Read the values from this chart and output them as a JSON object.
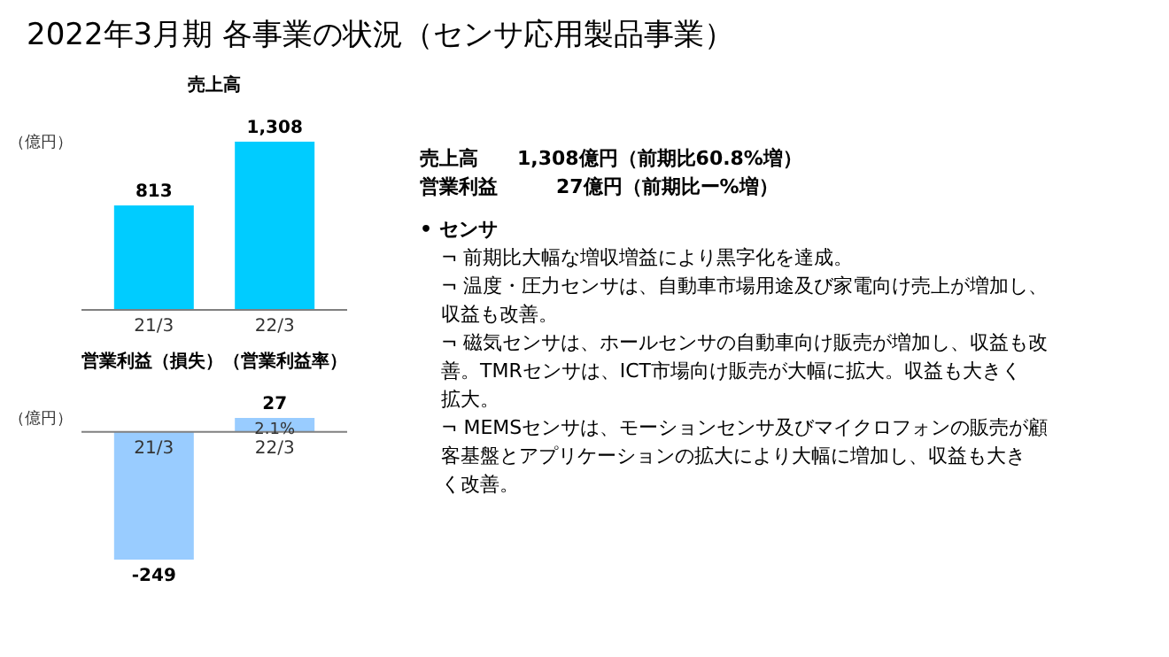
{
  "chart_data": [
    {
      "type": "other",
      "title": "2022年3月期 各事業の状況（センサ応用製品事業）"
    },
    {
      "type": "bar",
      "title": "売上高",
      "ylabel": "（億円）",
      "categories": [
        "21/3",
        "22/3"
      ],
      "values": [
        813,
        1308
      ],
      "value_labels": [
        "813",
        "1,308"
      ],
      "color": "#00ccff",
      "grid": false
    },
    {
      "type": "bar",
      "title": "営業利益（損失）（営業利益率）",
      "ylabel": "（億円）",
      "categories": [
        "21/3",
        "22/3"
      ],
      "values": [
        -249,
        27
      ],
      "value_labels": [
        "-249",
        "27"
      ],
      "color": "#99ccff",
      "grid": false,
      "annotations": [
        {
          "text": "2.1%",
          "x": "22/3",
          "y": 13.5
        }
      ]
    },
    {
      "type": "other",
      "annotations": [
        "売上高　　1,308億円（前期比60.8%増）",
        "営業利益　　　27億円（前期比ー%増）",
        "• センサ",
        "¬ 前期比大幅な増収増益により黒字化を達成。",
        "¬ 温度・圧力センサは、自動車市場用途及び家電向け売上が増加し、",
        "　収益も改善。",
        "¬ 磁気センサは、ホールセンサの自動車向け販売が増加し、収益も改",
        "　善。TMRセンサは、ICT市場向け販売が大幅に拡大。収益も大きく",
        "　拡大。",
        "¬ MEMSセンサは、モーションセンサ及びマイクロフォンの販売が顧",
        "　客基盤とアプリケーションの拡大により大幅に増加し、収益も大き",
        "　く改善。"
      ]
    }
  ]
}
